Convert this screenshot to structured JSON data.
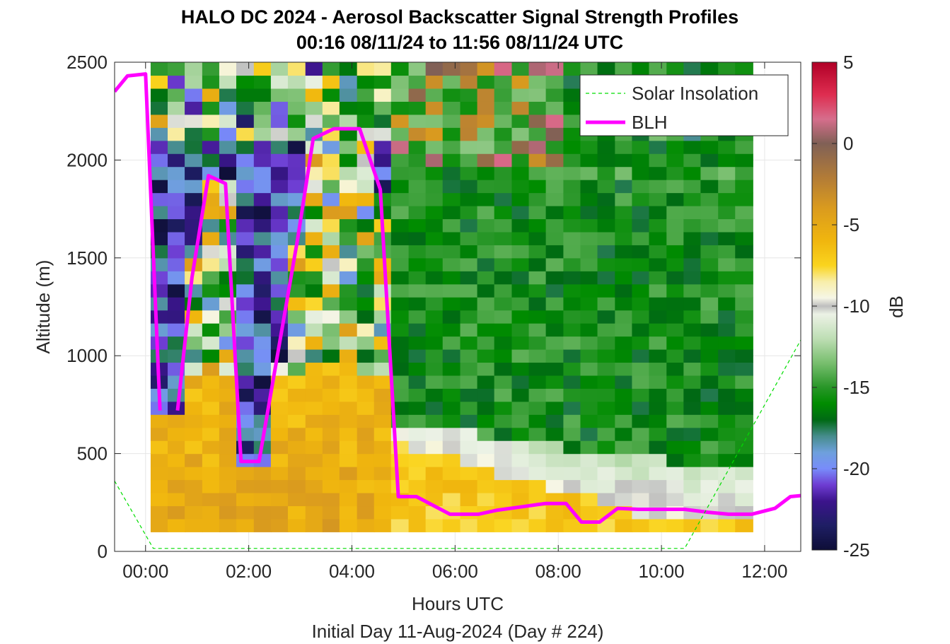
{
  "figure": {
    "title_line1": "HALO DC 2024 - Aerosol Backscatter Signal Strength Profiles",
    "title_line2": "00:16 08/11/24 to 11:56 08/11/24  UTC",
    "footer": "Initial Day 11-Aug-2024 (Day # 224)"
  },
  "chart_data": {
    "type": "heatmap",
    "title": "HALO DC 2024 - Aerosol Backscatter Signal Strength Profiles",
    "subtitle": "00:16 08/11/24 to 11:56 08/11/24  UTC",
    "xlabel": "Hours UTC",
    "ylabel": "Altitude (m)",
    "xlim": [
      -0.6,
      12.7
    ],
    "ylim": [
      0,
      2500
    ],
    "x_ticks": [
      0,
      2,
      4,
      6,
      8,
      10,
      12
    ],
    "x_tick_labels": [
      "00:00",
      "02:00",
      "04:00",
      "06:00",
      "08:00",
      "10:00",
      "12:00"
    ],
    "y_ticks": [
      0,
      500,
      1000,
      1500,
      2000,
      2500
    ],
    "y_tick_labels": [
      "0",
      "500",
      "1000",
      "1500",
      "2000",
      "2500"
    ],
    "grid": true,
    "legend_position": "top-right",
    "colorbar": {
      "label": "dB",
      "range": [
        -25,
        5
      ],
      "ticks": [
        5,
        0,
        -5,
        -10,
        -15,
        -20,
        -25
      ],
      "tick_labels": [
        "5",
        "0",
        "-5",
        "-10",
        "-15",
        "-20",
        "-25"
      ]
    },
    "heatmap": {
      "x_start": 0.27,
      "x_end": 11.93,
      "alt_start": 100,
      "alt_end": 2500,
      "units": "dB",
      "columns": [
        {
          "x": 0.27,
          "blh": 720
        },
        {
          "x": 0.6,
          "blh": 720
        },
        {
          "x": 0.93,
          "blh": 1500
        },
        {
          "x": 1.27,
          "blh": 1920
        },
        {
          "x": 1.6,
          "blh": 1880
        },
        {
          "x": 1.93,
          "blh": 460
        },
        {
          "x": 2.27,
          "blh": 460
        },
        {
          "x": 2.6,
          "blh": 1000
        },
        {
          "x": 2.93,
          "blh": 1600
        },
        {
          "x": 3.27,
          "blh": 2110
        },
        {
          "x": 3.6,
          "blh": 2160
        },
        {
          "x": 3.93,
          "blh": 2160
        },
        {
          "x": 4.27,
          "blh": 2150
        },
        {
          "x": 4.6,
          "blh": 1850
        },
        {
          "x": 4.93,
          "blh": 280
        },
        {
          "x": 5.27,
          "blh": 280
        },
        {
          "x": 5.6,
          "blh": 240
        },
        {
          "x": 5.93,
          "blh": 190
        },
        {
          "x": 6.27,
          "blh": 190
        },
        {
          "x": 6.6,
          "blh": 190
        },
        {
          "x": 6.93,
          "blh": 210
        },
        {
          "x": 7.27,
          "blh": 220
        },
        {
          "x": 7.6,
          "blh": 230
        },
        {
          "x": 7.93,
          "blh": 240
        },
        {
          "x": 8.27,
          "blh": 150
        },
        {
          "x": 8.6,
          "blh": 150
        },
        {
          "x": 8.93,
          "blh": 220
        },
        {
          "x": 9.27,
          "blh": 215
        },
        {
          "x": 9.6,
          "blh": 215
        },
        {
          "x": 9.93,
          "blh": 215
        },
        {
          "x": 10.27,
          "blh": 215
        },
        {
          "x": 10.6,
          "blh": 200
        },
        {
          "x": 10.93,
          "blh": 190
        },
        {
          "x": 11.27,
          "blh": 190
        },
        {
          "x": 11.6,
          "blh": 190
        }
      ]
    },
    "series": [
      {
        "name": "BLH",
        "color": "#ff00ff",
        "style": "solid",
        "x": [
          -0.6,
          -0.35,
          0.0,
          0.28,
          0.28,
          0.62,
          0.9,
          1.22,
          1.55,
          1.85,
          2.2,
          2.95,
          3.25,
          3.65,
          4.15,
          4.55,
          4.9,
          5.25,
          5.9,
          6.45,
          6.8,
          7.35,
          7.75,
          8.15,
          8.45,
          8.8,
          9.15,
          9.55,
          9.95,
          10.45,
          10.9,
          11.3,
          11.75,
          12.2,
          12.5,
          12.7
        ],
        "y": [
          2350,
          2430,
          2440,
          720,
          null,
          720,
          1400,
          1920,
          1880,
          460,
          460,
          1600,
          2110,
          2160,
          2160,
          1850,
          280,
          280,
          190,
          190,
          210,
          230,
          245,
          245,
          150,
          150,
          220,
          215,
          215,
          215,
          200,
          190,
          190,
          220,
          280,
          285
        ]
      },
      {
        "name": "Solar Insolation",
        "color": "#00dd00",
        "style": "dashed",
        "x": [
          -0.6,
          0.15,
          0.25,
          10.45,
          12.7
        ],
        "y": [
          360,
          15,
          15,
          15,
          1080
        ]
      }
    ]
  },
  "colors": {
    "blh": "#ff00ff",
    "solar": "#00dd00",
    "background": "#ffffff",
    "axes": "#262626",
    "grid": "#e6e6e6"
  }
}
